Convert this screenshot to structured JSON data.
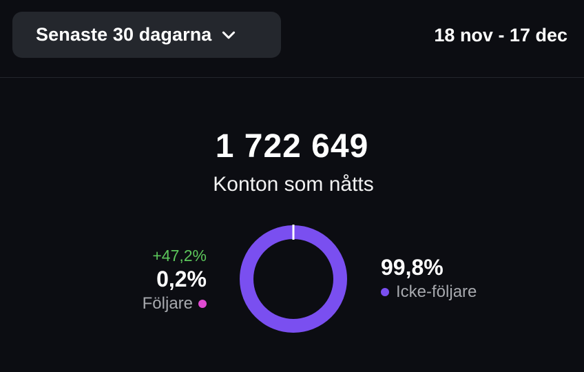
{
  "header": {
    "range_label": "Senaste 30 dagarna",
    "date_range": "18 nov - 17 dec"
  },
  "summary": {
    "total": "1 722 649",
    "label": "Konton som nåtts"
  },
  "breakdown": {
    "followers": {
      "change": "+47,2%",
      "percent": "0,2%",
      "label": "Följare",
      "color": "#e04ad2",
      "share": 0.2
    },
    "non_followers": {
      "percent": "99,8%",
      "label": "Icke-följare",
      "color": "#7a4ff0",
      "share": 99.8
    }
  },
  "icons": {
    "dropdown": "chevron-down-icon"
  }
}
